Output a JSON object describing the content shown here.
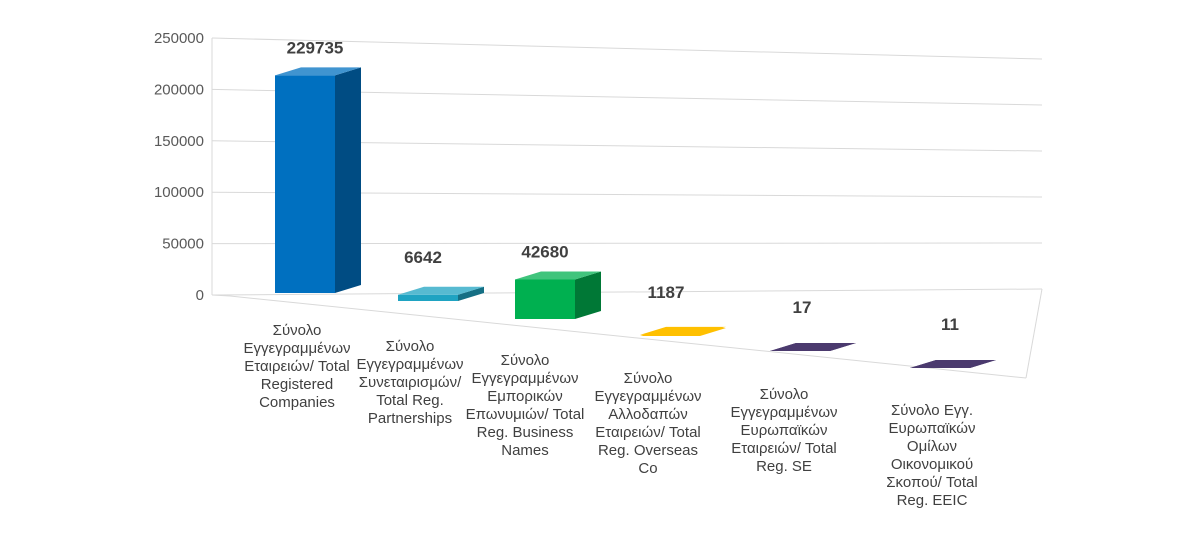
{
  "chart_data": {
    "type": "bar",
    "title": "",
    "xlabel": "",
    "ylabel": "",
    "ylim": [
      0,
      250000
    ],
    "yticks": [
      0,
      50000,
      100000,
      150000,
      200000,
      250000
    ],
    "ytick_labels": [
      "0",
      "50000",
      "100000",
      "150000",
      "200000",
      "250000"
    ],
    "grid": true,
    "legend": "none",
    "categories": [
      "Σύνολο Εγγεγραμμένων Εταιρειών/ Total Registered Companies",
      "Σύνολο Εγγεγραμμένων Συνεταιρισμών/ Total Reg. Partnerships",
      "Σύνολο Εγγεγραμμένων Εμπορικών Επωνυμιών/ Total Reg. Business Names",
      "Σύνολο Εγγεγραμμένων Αλλοδαπών Εταιρειών/ Total Reg. Overseas Co",
      "Σύνολο Εγγεγραμμένων Ευρωπαϊκών Εταιρειών/ Total Reg. SE",
      "Σύνολο Εγγ. Ευρωπαϊκών Ομίλων Οικονομικού Σκοπού/ Total Reg. EEIC"
    ],
    "values": [
      229735,
      6642,
      42680,
      1187,
      17,
      11
    ],
    "value_labels": [
      "229735",
      "6642",
      "42680",
      "1187",
      "17",
      "11"
    ],
    "colors": [
      "#0070C0",
      "#1FA3C2",
      "#00B050",
      "#FFC000",
      "#4B3A6E",
      "#4B3A6E"
    ]
  }
}
